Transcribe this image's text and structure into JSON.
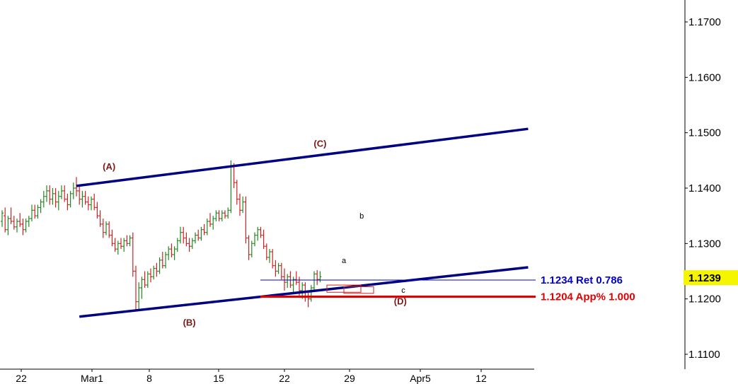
{
  "chart_data": {
    "type": "candlestick",
    "title": "",
    "y_axis": {
      "side": "right",
      "ticks": [
        "1.1700",
        "1.1600",
        "1.1500",
        "1.1400",
        "1.1300",
        "1.1200",
        "1.1100"
      ],
      "ylim": [
        1.1075,
        1.1725
      ]
    },
    "x_axis": {
      "ticks": [
        "22",
        "Mar1",
        "8",
        "15",
        "22",
        "29",
        "Apr5",
        "12"
      ]
    },
    "current_price": {
      "label": "1.1239",
      "value": 1.1239,
      "color": "#f5f500"
    },
    "levels": [
      {
        "label": "1.1234 Ret 0.786",
        "value": 1.1234,
        "color": "#0000cc"
      },
      {
        "label": "1.1204 App% 1.000",
        "value": 1.1204,
        "color": "#e00000"
      }
    ],
    "channel": {
      "color": "#000080",
      "upper": {
        "start": [
          25,
          1.1404
        ],
        "end": [
          177,
          1.1507
        ]
      },
      "lower": {
        "start": [
          26,
          1.1168
        ],
        "end": [
          177,
          1.1257
        ]
      }
    },
    "wave_labels": [
      {
        "text": "(A)",
        "x": 36,
        "y": 1.1433
      },
      {
        "text": "(B)",
        "x": 63,
        "y": 1.1152
      },
      {
        "text": "(C)",
        "x": 107,
        "y": 1.1475
      },
      {
        "text": "(D)",
        "x": 134,
        "y": 1.119
      }
    ],
    "sub_labels": [
      {
        "text": "a",
        "x": 115,
        "y": 1.1265
      },
      {
        "text": "b",
        "x": 121,
        "y": 1.1345
      },
      {
        "text": "c",
        "x": 135,
        "y": 1.1211
      }
    ],
    "bars": [
      [
        1.134,
        1.136,
        1.133,
        1.1355
      ],
      [
        1.135,
        1.1365,
        1.132,
        1.1325
      ],
      [
        1.1325,
        1.135,
        1.1315,
        1.1345
      ],
      [
        1.1345,
        1.1365,
        1.1335,
        1.134
      ],
      [
        1.134,
        1.135,
        1.1325,
        1.133
      ],
      [
        1.133,
        1.1345,
        1.132,
        1.134
      ],
      [
        1.134,
        1.1355,
        1.133,
        1.1335
      ],
      [
        1.1335,
        1.1345,
        1.1315,
        1.1325
      ],
      [
        1.1325,
        1.1345,
        1.132,
        1.134
      ],
      [
        1.134,
        1.135,
        1.133,
        1.1345
      ],
      [
        1.1345,
        1.137,
        1.134,
        1.136
      ],
      [
        1.136,
        1.137,
        1.1345,
        1.135
      ],
      [
        1.135,
        1.137,
        1.1345,
        1.1365
      ],
      [
        1.1365,
        1.138,
        1.1355,
        1.1375
      ],
      [
        1.1375,
        1.1395,
        1.1365,
        1.1385
      ],
      [
        1.1385,
        1.1405,
        1.1375,
        1.1395
      ],
      [
        1.1395,
        1.1405,
        1.137,
        1.138
      ],
      [
        1.138,
        1.14,
        1.137,
        1.139
      ],
      [
        1.139,
        1.14,
        1.1365,
        1.1375
      ],
      [
        1.1375,
        1.1395,
        1.136,
        1.1385
      ],
      [
        1.1385,
        1.1405,
        1.138,
        1.1395
      ],
      [
        1.1395,
        1.1405,
        1.1375,
        1.138
      ],
      [
        1.138,
        1.139,
        1.136,
        1.137
      ],
      [
        1.137,
        1.1395,
        1.1365,
        1.139
      ],
      [
        1.139,
        1.141,
        1.138,
        1.14
      ],
      [
        1.14,
        1.142,
        1.1385,
        1.1395
      ],
      [
        1.1395,
        1.1405,
        1.137,
        1.138
      ],
      [
        1.138,
        1.1395,
        1.1365,
        1.1385
      ],
      [
        1.1385,
        1.1395,
        1.137,
        1.1375
      ],
      [
        1.1375,
        1.1385,
        1.136,
        1.137
      ],
      [
        1.137,
        1.1385,
        1.136,
        1.138
      ],
      [
        1.138,
        1.139,
        1.136,
        1.1365
      ],
      [
        1.1365,
        1.1375,
        1.1345,
        1.135
      ],
      [
        1.135,
        1.136,
        1.133,
        1.1335
      ],
      [
        1.1335,
        1.1345,
        1.131,
        1.132
      ],
      [
        1.132,
        1.134,
        1.1315,
        1.1335
      ],
      [
        1.1335,
        1.134,
        1.131,
        1.1315
      ],
      [
        1.1315,
        1.1325,
        1.1295,
        1.13
      ],
      [
        1.13,
        1.131,
        1.1285,
        1.129
      ],
      [
        1.129,
        1.1305,
        1.128,
        1.13
      ],
      [
        1.13,
        1.131,
        1.129,
        1.1295
      ],
      [
        1.1295,
        1.131,
        1.1285,
        1.1305
      ],
      [
        1.1305,
        1.1315,
        1.1295,
        1.13
      ],
      [
        1.13,
        1.1315,
        1.1295,
        1.131
      ],
      [
        1.131,
        1.132,
        1.124,
        1.125
      ],
      [
        1.125,
        1.126,
        1.118,
        1.1195
      ],
      [
        1.1195,
        1.123,
        1.118,
        1.122
      ],
      [
        1.122,
        1.124,
        1.12,
        1.1235
      ],
      [
        1.1235,
        1.125,
        1.122,
        1.1225
      ],
      [
        1.1225,
        1.125,
        1.122,
        1.1245
      ],
      [
        1.1245,
        1.1255,
        1.123,
        1.124
      ],
      [
        1.124,
        1.126,
        1.1235,
        1.1255
      ],
      [
        1.1255,
        1.1265,
        1.124,
        1.125
      ],
      [
        1.125,
        1.1275,
        1.1245,
        1.127
      ],
      [
        1.127,
        1.1285,
        1.1255,
        1.126
      ],
      [
        1.126,
        1.1285,
        1.1255,
        1.128
      ],
      [
        1.128,
        1.1295,
        1.127,
        1.129
      ],
      [
        1.129,
        1.13,
        1.1275,
        1.128
      ],
      [
        1.128,
        1.1295,
        1.127,
        1.129
      ],
      [
        1.129,
        1.131,
        1.1285,
        1.1305
      ],
      [
        1.1305,
        1.133,
        1.13,
        1.132
      ],
      [
        1.132,
        1.133,
        1.13,
        1.131
      ],
      [
        1.131,
        1.132,
        1.1295,
        1.13
      ],
      [
        1.13,
        1.131,
        1.1285,
        1.1295
      ],
      [
        1.1295,
        1.131,
        1.129,
        1.1305
      ],
      [
        1.1305,
        1.132,
        1.13,
        1.1315
      ],
      [
        1.1315,
        1.1325,
        1.1305,
        1.131
      ],
      [
        1.131,
        1.133,
        1.1305,
        1.1325
      ],
      [
        1.1325,
        1.1335,
        1.1315,
        1.132
      ],
      [
        1.132,
        1.1345,
        1.1315,
        1.134
      ],
      [
        1.134,
        1.1355,
        1.133,
        1.1335
      ],
      [
        1.1335,
        1.135,
        1.1325,
        1.1345
      ],
      [
        1.1345,
        1.136,
        1.134,
        1.1355
      ],
      [
        1.1355,
        1.136,
        1.134,
        1.1345
      ],
      [
        1.1345,
        1.136,
        1.134,
        1.1355
      ],
      [
        1.1355,
        1.136,
        1.1345,
        1.135
      ],
      [
        1.135,
        1.1365,
        1.1345,
        1.136
      ],
      [
        1.136,
        1.145,
        1.1355,
        1.144
      ],
      [
        1.144,
        1.1445,
        1.14,
        1.141
      ],
      [
        1.141,
        1.1415,
        1.137,
        1.138
      ],
      [
        1.138,
        1.139,
        1.135,
        1.136
      ],
      [
        1.136,
        1.1385,
        1.1355,
        1.1375
      ],
      [
        1.1375,
        1.1385,
        1.13,
        1.131
      ],
      [
        1.131,
        1.1315,
        1.127,
        1.128
      ],
      [
        1.128,
        1.1305,
        1.1275,
        1.13
      ],
      [
        1.13,
        1.132,
        1.1295,
        1.1315
      ],
      [
        1.1315,
        1.133,
        1.1305,
        1.1325
      ],
      [
        1.1325,
        1.133,
        1.131,
        1.1315
      ],
      [
        1.1315,
        1.1325,
        1.129,
        1.1295
      ],
      [
        1.1295,
        1.13,
        1.127,
        1.1275
      ],
      [
        1.1275,
        1.129,
        1.1265,
        1.1285
      ],
      [
        1.1285,
        1.129,
        1.1255,
        1.126
      ],
      [
        1.126,
        1.127,
        1.124,
        1.125
      ],
      [
        1.125,
        1.1265,
        1.1245,
        1.126
      ],
      [
        1.126,
        1.1265,
        1.1235,
        1.124
      ],
      [
        1.124,
        1.1255,
        1.1215,
        1.123
      ],
      [
        1.123,
        1.1245,
        1.122,
        1.124
      ],
      [
        1.124,
        1.125,
        1.122,
        1.1225
      ],
      [
        1.1225,
        1.124,
        1.121,
        1.1235
      ],
      [
        1.1235,
        1.125,
        1.1225,
        1.123
      ],
      [
        1.123,
        1.124,
        1.1205,
        1.1215
      ],
      [
        1.1215,
        1.123,
        1.12,
        1.1225
      ],
      [
        1.1225,
        1.123,
        1.1195,
        1.1205
      ],
      [
        1.1205,
        1.1215,
        1.1185,
        1.12
      ],
      [
        1.12,
        1.1225,
        1.1195,
        1.122
      ],
      [
        1.122,
        1.125,
        1.1215,
        1.1245
      ],
      [
        1.1245,
        1.1252,
        1.1225,
        1.1235
      ],
      [
        1.1235,
        1.125,
        1.123,
        1.124
      ]
    ]
  }
}
